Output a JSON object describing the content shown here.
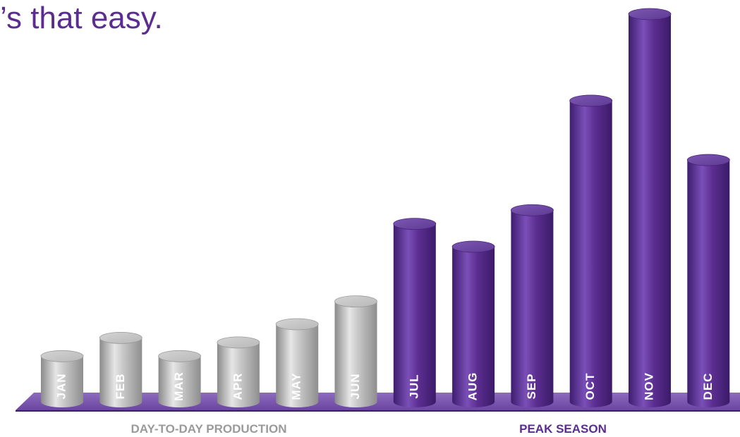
{
  "headline": "’s that easy.",
  "chart_data": {
    "type": "bar",
    "categories": [
      "JAN",
      "FEB",
      "MAR",
      "APR",
      "MAY",
      "JUN",
      "JUL",
      "AUG",
      "SEP",
      "OCT",
      "NOV",
      "DEC"
    ],
    "values": [
      10,
      14,
      10,
      13,
      17,
      22,
      39,
      34,
      42,
      66,
      85,
      53
    ],
    "ylim": [
      0,
      85
    ],
    "grid": false,
    "groups": [
      {
        "name": "DAY-TO-DAY PRODUCTION",
        "categories": [
          "JAN",
          "FEB",
          "MAR",
          "APR",
          "MAY",
          "JUN"
        ],
        "color": "#a8a8a8"
      },
      {
        "name": "PEAK SEASON",
        "categories": [
          "JUL",
          "AUG",
          "SEP",
          "OCT",
          "NOV",
          "DEC"
        ],
        "color": "#5b2d90"
      }
    ],
    "base_color": "#7a55ad"
  }
}
